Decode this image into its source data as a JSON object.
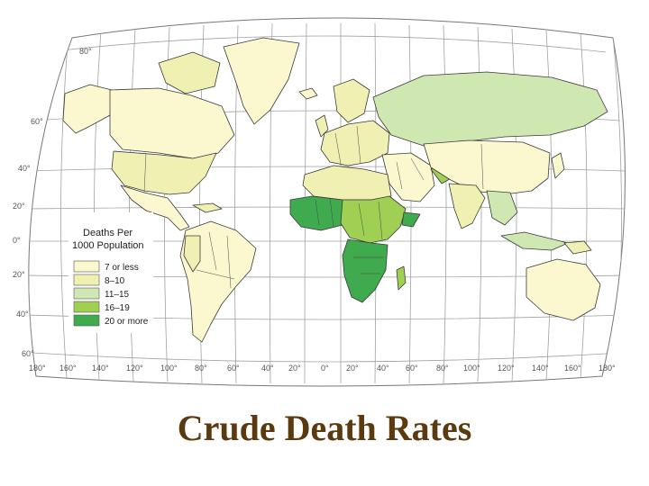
{
  "title": "Crude Death Rates",
  "legend": {
    "title_line1": "Deaths Per",
    "title_line2": "1000 Population",
    "items": [
      {
        "label": "7 or less",
        "color": "#fbf7cf"
      },
      {
        "label": "8–10",
        "color": "#f1f0b3"
      },
      {
        "label": "11–15",
        "color": "#cfe8b2"
      },
      {
        "label": "16–19",
        "color": "#9fd053"
      },
      {
        "label": "20 or more",
        "color": "#3faa4e"
      }
    ]
  },
  "latitude_labels": [
    "80°",
    "60°",
    "40°",
    "20°",
    "0°",
    "20°",
    "40°",
    "60°"
  ],
  "longitude_labels": [
    "180°",
    "160°",
    "140°",
    "120°",
    "100°",
    "80°",
    "60°",
    "40°",
    "20°",
    "0°",
    "20°",
    "40°",
    "60°",
    "80°",
    "100°",
    "120°",
    "140°",
    "160°",
    "180°"
  ],
  "colors": {
    "ocean": "#ffffff",
    "grid": "#9a9a9a",
    "coast": "#3a3a3a",
    "title": "#5a3a0e"
  }
}
